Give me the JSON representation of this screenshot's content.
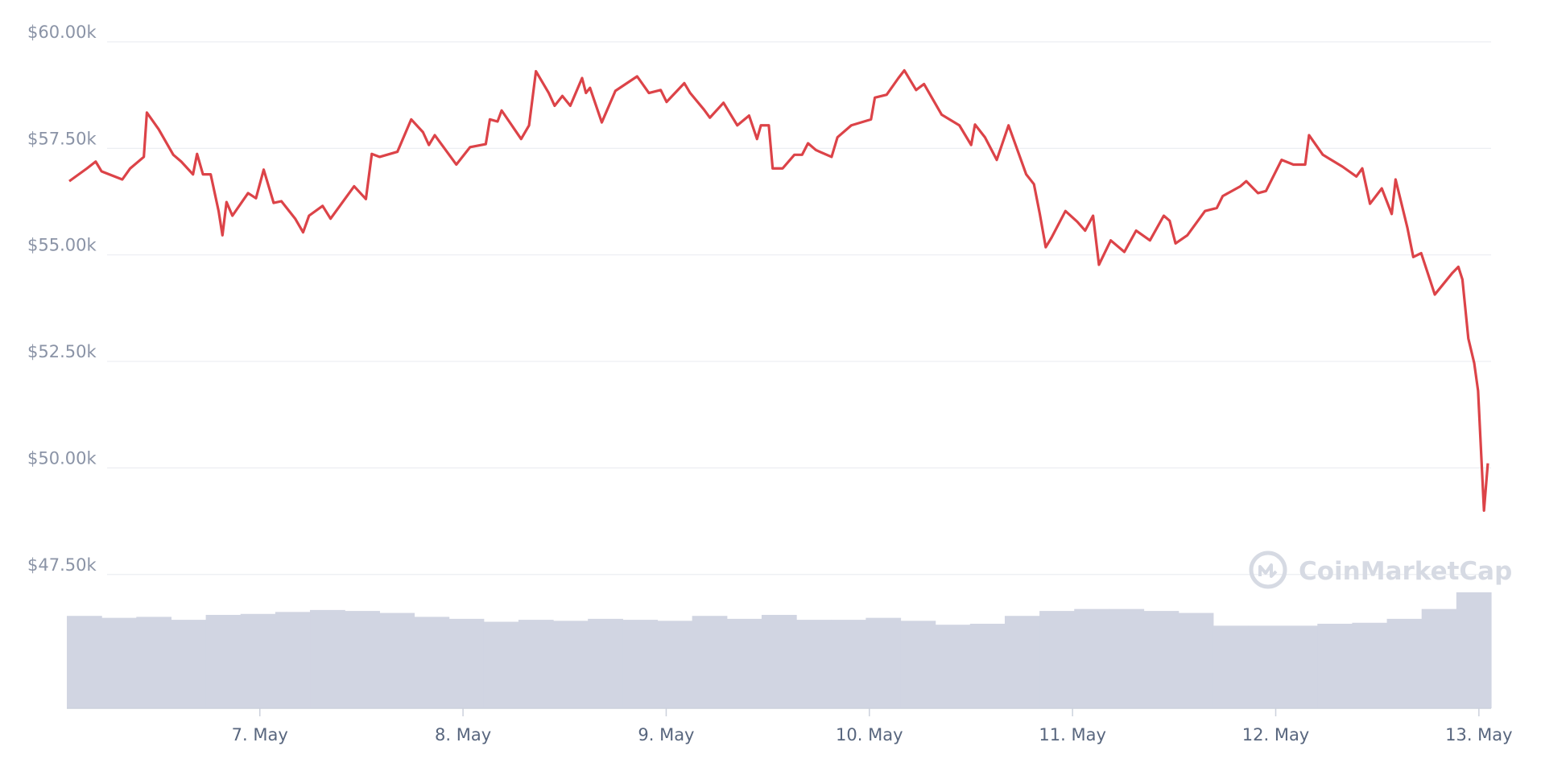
{
  "chart_data": [
    {
      "type": "line",
      "watermark": "CoinMarketCap",
      "xlim": [
        6.05,
        13.06
      ],
      "xticks": [
        {
          "value": 7,
          "label": "7. May"
        },
        {
          "value": 8,
          "label": "8. May"
        },
        {
          "value": 9,
          "label": "9. May"
        },
        {
          "value": 10,
          "label": "10. May"
        },
        {
          "value": 11,
          "label": "11. May"
        },
        {
          "value": 12,
          "label": "12. May"
        },
        {
          "value": 13,
          "label": "13. May"
        }
      ],
      "ylim": [
        44360,
        60000
      ],
      "yticks": [
        {
          "value": 47500,
          "label": "$47.50k"
        },
        {
          "value": 50000,
          "label": "$50.00k"
        },
        {
          "value": 52500,
          "label": "$52.50k"
        },
        {
          "value": 55000,
          "label": "$55.00k"
        },
        {
          "value": 57500,
          "label": "$57.50k"
        },
        {
          "value": 60000,
          "label": "$60.00k"
        }
      ],
      "grid": true,
      "x": [
        6.062,
        6.149,
        6.192,
        6.221,
        6.323,
        6.362,
        6.429,
        6.444,
        6.502,
        6.574,
        6.613,
        6.671,
        6.691,
        6.72,
        6.758,
        6.797,
        6.816,
        6.836,
        6.865,
        6.942,
        6.981,
        7.019,
        7.068,
        7.106,
        7.174,
        7.213,
        7.242,
        7.309,
        7.348,
        7.464,
        7.522,
        7.551,
        7.59,
        7.677,
        7.745,
        7.803,
        7.832,
        7.861,
        7.967,
        8.035,
        8.112,
        8.132,
        8.17,
        8.19,
        8.286,
        8.325,
        8.359,
        8.422,
        8.451,
        8.489,
        8.528,
        8.586,
        8.605,
        8.625,
        8.683,
        8.75,
        8.857,
        8.915,
        8.973,
        9.002,
        9.089,
        9.118,
        9.186,
        9.215,
        9.282,
        9.35,
        9.408,
        9.447,
        9.466,
        9.505,
        9.524,
        9.573,
        9.631,
        9.669,
        9.698,
        9.737,
        9.814,
        9.843,
        9.911,
        10.008,
        10.027,
        10.085,
        10.143,
        10.172,
        10.23,
        10.269,
        10.356,
        10.443,
        10.501,
        10.52,
        10.569,
        10.627,
        10.685,
        10.772,
        10.81,
        10.839,
        10.868,
        10.897,
        10.965,
        11.023,
        11.062,
        11.101,
        11.13,
        11.188,
        11.255,
        11.313,
        11.381,
        11.449,
        11.478,
        11.507,
        11.565,
        11.652,
        11.71,
        11.739,
        11.826,
        11.855,
        11.913,
        11.952,
        12.029,
        12.087,
        12.145,
        12.164,
        12.232,
        12.329,
        12.397,
        12.426,
        12.464,
        12.522,
        12.571,
        12.59,
        12.648,
        12.677,
        12.716,
        12.783,
        12.87,
        12.899,
        12.919,
        12.948,
        12.977,
        12.996,
        13.025,
        13.044
      ],
      "series": [
        {
          "color": "#dc4348",
          "values": [
            56730,
            57030,
            57190,
            56960,
            56770,
            57030,
            57300,
            58340,
            57950,
            57350,
            57190,
            56890,
            57370,
            56890,
            56890,
            56030,
            55460,
            56240,
            55920,
            56450,
            56330,
            57000,
            56220,
            56260,
            55850,
            55530,
            55920,
            56150,
            55850,
            56610,
            56310,
            57370,
            57300,
            57420,
            58180,
            57880,
            57580,
            57810,
            57120,
            57530,
            57600,
            58180,
            58130,
            58390,
            57720,
            58040,
            59310,
            58800,
            58500,
            58730,
            58500,
            59150,
            58800,
            58920,
            58110,
            58850,
            59190,
            58800,
            58870,
            58590,
            59030,
            58800,
            58410,
            58220,
            58570,
            58040,
            58270,
            57720,
            58040,
            58040,
            57030,
            57030,
            57350,
            57350,
            57620,
            57460,
            57300,
            57760,
            58040,
            58180,
            58690,
            58760,
            59150,
            59330,
            58870,
            59010,
            58290,
            58040,
            57580,
            58060,
            57760,
            57230,
            58040,
            56890,
            56660,
            55960,
            55180,
            55410,
            56030,
            55780,
            55570,
            55920,
            54770,
            55340,
            55070,
            55570,
            55340,
            55920,
            55800,
            55270,
            55460,
            56030,
            56100,
            56380,
            56610,
            56730,
            56450,
            56500,
            57230,
            57120,
            57120,
            57810,
            57350,
            57070,
            56840,
            57030,
            56200,
            56560,
            55960,
            56770,
            55640,
            54950,
            55040,
            54070,
            54580,
            54720,
            54420,
            53040,
            52460,
            51810,
            49000,
            50110
          ]
        }
      ]
    },
    {
      "type": "bar",
      "color": "#d1d5e2",
      "ylim": [
        0,
        678
      ],
      "values": [
        94,
        92,
        93,
        90,
        95,
        96,
        98,
        100,
        99,
        97,
        93,
        91,
        88,
        90,
        89,
        91,
        90,
        89,
        94,
        91,
        95,
        90,
        90,
        92,
        89,
        85,
        86,
        94,
        99,
        101,
        101,
        99,
        97,
        84,
        84,
        84,
        86,
        87,
        91,
        101,
        118
      ]
    }
  ]
}
